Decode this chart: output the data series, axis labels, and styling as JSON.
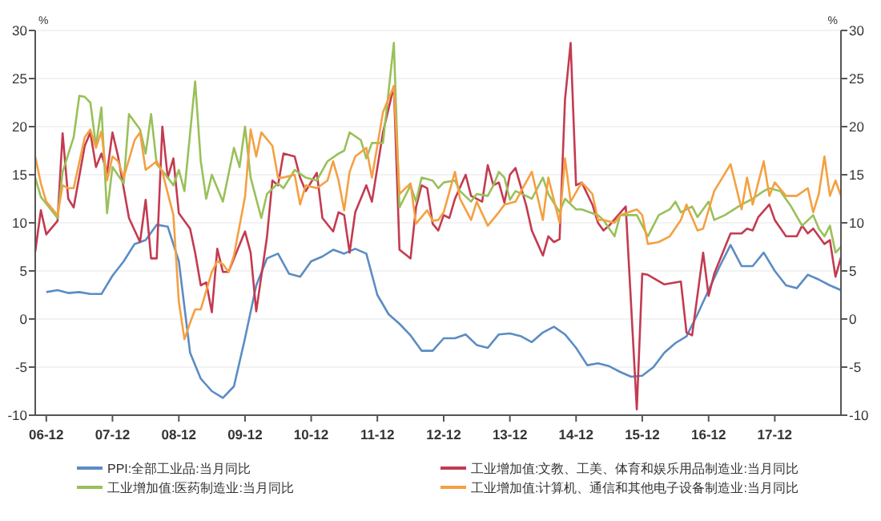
{
  "chart_data": {
    "type": "line",
    "ylabel": "%",
    "y2label": "%",
    "xlim": [
      "2006-10",
      "2018-12"
    ],
    "xticks": [
      {
        "value": "2006-12",
        "label": "06-12"
      },
      {
        "value": "2007-12",
        "label": "07-12"
      },
      {
        "value": "2008-12",
        "label": "08-12"
      },
      {
        "value": "2009-12",
        "label": "09-12"
      },
      {
        "value": "2010-12",
        "label": "10-12"
      },
      {
        "value": "2011-12",
        "label": "11-12"
      },
      {
        "value": "2012-12",
        "label": "12-12"
      },
      {
        "value": "2013-12",
        "label": "13-12"
      },
      {
        "value": "2014-12",
        "label": "14-12"
      },
      {
        "value": "2015-12",
        "label": "15-12"
      },
      {
        "value": "2016-12",
        "label": "16-12"
      },
      {
        "value": "2017-12",
        "label": "17-12"
      }
    ],
    "ylim": [
      -10,
      30
    ],
    "yticks": [
      -10,
      -5,
      0,
      5,
      10,
      15,
      20,
      25,
      30
    ],
    "y2lim": [
      -10,
      30
    ],
    "y2ticks": [
      -10,
      -5,
      0,
      5,
      10,
      15,
      20,
      25,
      30
    ],
    "grid": "y",
    "legend": "bottom",
    "marker": "none",
    "line_style": "solid",
    "series": [
      {
        "name": "PPI:全部工业品:当月同比",
        "color": "#5b8cc4",
        "x": [
          "2006-12",
          "2007-02",
          "2007-04",
          "2007-06",
          "2007-08",
          "2007-10",
          "2007-12",
          "2008-02",
          "2008-04",
          "2008-06",
          "2008-08",
          "2008-10",
          "2008-12",
          "2009-02",
          "2009-04",
          "2009-06",
          "2009-08",
          "2009-10",
          "2009-12",
          "2010-02",
          "2010-04",
          "2010-06",
          "2010-08",
          "2010-10",
          "2010-12",
          "2011-02",
          "2011-04",
          "2011-06",
          "2011-08",
          "2011-10",
          "2011-12",
          "2012-02",
          "2012-04",
          "2012-06",
          "2012-08",
          "2012-10",
          "2012-12",
          "2013-02",
          "2013-04",
          "2013-06",
          "2013-08",
          "2013-10",
          "2013-12",
          "2014-02",
          "2014-04",
          "2014-06",
          "2014-08",
          "2014-10",
          "2014-12",
          "2015-02",
          "2015-04",
          "2015-06",
          "2015-08",
          "2015-10",
          "2015-12",
          "2016-02",
          "2016-04",
          "2016-06",
          "2016-08",
          "2016-10",
          "2016-12",
          "2017-02",
          "2017-04",
          "2017-06",
          "2017-08",
          "2017-10",
          "2017-12",
          "2018-02",
          "2018-04",
          "2018-06",
          "2018-08",
          "2018-10",
          "2018-12"
        ],
        "values": [
          2.8,
          3.0,
          2.7,
          2.8,
          2.6,
          2.6,
          4.5,
          6.0,
          7.8,
          8.2,
          9.8,
          9.6,
          6,
          -3.5,
          -6.2,
          -7.5,
          -8.2,
          -7,
          -2,
          3.5,
          6.3,
          6.8,
          4.7,
          4.4,
          6.0,
          6.5,
          7.2,
          6.8,
          7.3,
          6.8,
          2.5,
          0.5,
          -0.5,
          -1.7,
          -3.3,
          -3.3,
          -2.0,
          -2.0,
          -1.6,
          -2.7,
          -3.0,
          -1.6,
          -1.5,
          -1.8,
          -2.4,
          -1.4,
          -0.8,
          -1.6,
          -3.0,
          -4.8,
          -4.6,
          -4.9,
          -5.5,
          -6,
          -5.9,
          -5.0,
          -3.5,
          -2.5,
          -1.8,
          0.5,
          3.0,
          5.5,
          7.7,
          5.5,
          5.5,
          6.9,
          5.0,
          3.5,
          3.2,
          4.6,
          4.1,
          3.5,
          3.0
        ]
      },
      {
        "name": "工业增加值:文教、工美、体育和娱乐用品制造业:当月同比",
        "color": "#c33b50",
        "x": [
          "2006-10",
          "2006-11",
          "2006-12",
          "2007-02",
          "2007-03",
          "2007-04",
          "2007-05",
          "2007-07",
          "2007-08",
          "2007-09",
          "2007-10",
          "2007-11",
          "2007-12",
          "2008-01",
          "2008-03",
          "2008-05",
          "2008-06",
          "2008-07",
          "2008-08",
          "2008-09",
          "2008-10",
          "2008-11",
          "2008-12",
          "2009-02",
          "2009-03",
          "2009-04",
          "2009-05",
          "2009-06",
          "2009-07",
          "2009-08",
          "2009-09",
          "2009-10",
          "2009-12",
          "2010-01",
          "2010-02",
          "2010-04",
          "2010-05",
          "2010-06",
          "2010-07",
          "2010-09",
          "2010-10",
          "2010-11",
          "2011-01",
          "2011-02",
          "2011-04",
          "2011-05",
          "2011-06",
          "2011-07",
          "2011-08",
          "2011-10",
          "2011-11",
          "2012-01",
          "2012-03",
          "2012-04",
          "2012-06",
          "2012-07",
          "2012-08",
          "2012-09",
          "2012-10",
          "2012-11",
          "2012-12",
          "2013-01",
          "2013-02",
          "2013-04",
          "2013-05",
          "2013-07",
          "2013-08",
          "2013-09",
          "2013-10",
          "2013-11",
          "2013-12",
          "2014-01",
          "2014-03",
          "2014-04",
          "2014-06",
          "2014-07",
          "2014-08",
          "2014-09",
          "2014-10",
          "2014-11",
          "2014-12",
          "2015-01",
          "2015-03",
          "2015-04",
          "2015-05",
          "2015-06",
          "2015-09",
          "2015-11",
          "2015-12",
          "2016-01",
          "2016-04",
          "2016-07",
          "2016-08",
          "2016-09",
          "2016-11",
          "2016-12",
          "2017-01",
          "2017-04",
          "2017-06",
          "2017-07",
          "2017-08",
          "2017-09",
          "2017-11",
          "2017-12",
          "2018-02",
          "2018-04",
          "2018-05",
          "2018-06",
          "2018-07",
          "2018-09",
          "2018-10",
          "2018-11",
          "2018-12"
        ],
        "values": [
          7,
          11.3,
          8.8,
          10.2,
          19.3,
          12.5,
          11.6,
          18,
          19.4,
          15.8,
          17.2,
          15.2,
          19.4,
          16.9,
          10.5,
          8,
          12.4,
          6.3,
          6.3,
          20,
          14.7,
          16.7,
          11,
          9.4,
          6.9,
          3.5,
          3.8,
          0.7,
          7.3,
          4.9,
          4.9,
          6.3,
          9.1,
          6.9,
          0.8,
          8.5,
          14.4,
          13.9,
          17.2,
          16.9,
          14.7,
          13.3,
          15.2,
          10.5,
          9.1,
          11.1,
          10.8,
          6.9,
          11.1,
          13.9,
          12.2,
          19.4,
          24.2,
          7.2,
          6.3,
          11.6,
          13.9,
          13.6,
          9.9,
          9.2,
          10.8,
          10.5,
          12.5,
          15,
          12.8,
          12.2,
          16,
          13.9,
          14.2,
          12.1,
          15,
          15.7,
          11.8,
          9.2,
          6.6,
          8.6,
          8,
          8.3,
          22.8,
          28.7,
          13.9,
          14.2,
          11.9,
          10,
          9.2,
          9.7,
          11.7,
          -9.4,
          4.7,
          4.6,
          3.6,
          3.9,
          -1.4,
          -1.7,
          6.9,
          2.4,
          4.7,
          8.9,
          8.9,
          9.4,
          9.2,
          10.6,
          11.9,
          10.3,
          8.6,
          8.6,
          9.7,
          8.9,
          9.4,
          7.8,
          8.2,
          4.4,
          6.4
        ]
      },
      {
        "name": "工业增加值:医药制造业:当月同比",
        "color": "#99c05a",
        "x": [
          "2006-10",
          "2006-11",
          "2007-02",
          "2007-03",
          "2007-05",
          "2007-06",
          "2007-07",
          "2007-08",
          "2007-09",
          "2007-10",
          "2007-11",
          "2007-12",
          "2008-02",
          "2008-03",
          "2008-05",
          "2008-06",
          "2008-07",
          "2008-08",
          "2008-10",
          "2008-11",
          "2008-12",
          "2009-01",
          "2009-03",
          "2009-04",
          "2009-05",
          "2009-06",
          "2009-08",
          "2009-10",
          "2009-11",
          "2009-12",
          "2010-01",
          "2010-03",
          "2010-04",
          "2010-06",
          "2010-07",
          "2010-09",
          "2010-11",
          "2011-01",
          "2011-03",
          "2011-05",
          "2011-06",
          "2011-07",
          "2011-09",
          "2011-10",
          "2011-11",
          "2012-01",
          "2012-03",
          "2012-04",
          "2012-06",
          "2012-07",
          "2012-08",
          "2012-10",
          "2012-11",
          "2012-12",
          "2013-02",
          "2013-03",
          "2013-05",
          "2013-06",
          "2013-08",
          "2013-09",
          "2013-10",
          "2013-11",
          "2013-12",
          "2014-01",
          "2014-03",
          "2014-04",
          "2014-06",
          "2014-07",
          "2014-09",
          "2014-10",
          "2014-12",
          "2015-01",
          "2015-04",
          "2015-05",
          "2015-07",
          "2015-08",
          "2015-11",
          "2016-01",
          "2016-03",
          "2016-05",
          "2016-06",
          "2016-07",
          "2016-09",
          "2016-10",
          "2016-12",
          "2017-01",
          "2017-03",
          "2017-06",
          "2017-08",
          "2017-10",
          "2017-11",
          "2018-01",
          "2018-03",
          "2018-05",
          "2018-07",
          "2018-08",
          "2018-09",
          "2018-10",
          "2018-11",
          "2018-12"
        ],
        "values": [
          14.7,
          12.7,
          10.5,
          15.3,
          18.9,
          23.2,
          23.1,
          22.5,
          18,
          22,
          11,
          15.8,
          14.1,
          21.3,
          19.7,
          17.2,
          21.3,
          16.1,
          14.7,
          13.9,
          15.5,
          13.3,
          24.7,
          16.4,
          12.5,
          15,
          12.2,
          17.8,
          15.8,
          20,
          14.7,
          10.5,
          13,
          14.1,
          13.6,
          15.5,
          14.7,
          14.4,
          16.4,
          17.2,
          17.5,
          19.4,
          18.6,
          16.7,
          18.3,
          18.3,
          28.7,
          11.6,
          13.9,
          12.2,
          14.7,
          14.4,
          13.6,
          14.2,
          14.4,
          13.3,
          12.2,
          13,
          12.8,
          13.9,
          15.3,
          14.7,
          12.4,
          13.3,
          12.8,
          12.5,
          14.7,
          13,
          11.1,
          12.5,
          11.4,
          11.4,
          10.8,
          10.3,
          8.6,
          10.8,
          10.8,
          8.6,
          10.8,
          11.4,
          12.2,
          11.1,
          11.7,
          10.6,
          12.2,
          10.3,
          10.8,
          11.9,
          12.5,
          13.3,
          13.6,
          13.3,
          11.7,
          9.7,
          10.8,
          9.4,
          8.6,
          9.7,
          6.9,
          7.5
        ]
      },
      {
        "name": "工业增加值:计算机、通信和其他电子设备制造业:当月同比",
        "color": "#f4a042",
        "x": [
          "2006-10",
          "2006-11",
          "2006-12",
          "2007-02",
          "2007-03",
          "2007-04",
          "2007-05",
          "2007-07",
          "2007-08",
          "2007-09",
          "2007-10",
          "2007-11",
          "2007-12",
          "2008-01",
          "2008-02",
          "2008-04",
          "2008-05",
          "2008-06",
          "2008-08",
          "2008-09",
          "2008-11",
          "2008-12",
          "2009-01",
          "2009-02",
          "2009-03",
          "2009-04",
          "2009-06",
          "2009-07",
          "2009-08",
          "2009-09",
          "2009-10",
          "2009-12",
          "2010-01",
          "2010-02",
          "2010-03",
          "2010-05",
          "2010-06",
          "2010-07",
          "2010-09",
          "2010-10",
          "2010-11",
          "2011-01",
          "2011-03",
          "2011-04",
          "2011-05",
          "2011-06",
          "2011-07",
          "2011-08",
          "2011-10",
          "2011-11",
          "2012-01",
          "2012-03",
          "2012-04",
          "2012-06",
          "2012-07",
          "2012-09",
          "2012-10",
          "2012-11",
          "2012-12",
          "2013-02",
          "2013-03",
          "2013-05",
          "2013-06",
          "2013-08",
          "2013-10",
          "2013-11",
          "2014-01",
          "2014-02",
          "2014-04",
          "2014-06",
          "2014-07",
          "2014-09",
          "2014-10",
          "2014-11",
          "2015-01",
          "2015-02",
          "2015-03",
          "2015-04",
          "2015-05",
          "2015-07",
          "2015-08",
          "2015-11",
          "2015-12",
          "2016-01",
          "2016-03",
          "2016-05",
          "2016-07",
          "2016-08",
          "2016-10",
          "2016-11",
          "2017-01",
          "2017-04",
          "2017-06",
          "2017-07",
          "2017-08",
          "2017-10",
          "2017-11",
          "2017-12",
          "2018-02",
          "2018-04",
          "2018-06",
          "2018-07",
          "2018-08",
          "2018-09",
          "2018-10",
          "2018-11",
          "2018-12"
        ],
        "values": [
          16.9,
          14.1,
          12.2,
          10.8,
          13.9,
          13.6,
          13.6,
          18.9,
          19.7,
          17.8,
          19.5,
          14.4,
          16.9,
          16.4,
          14.7,
          18.6,
          19.4,
          15.5,
          16.4,
          15.3,
          10.8,
          1.8,
          -2.1,
          -0.4,
          1,
          1,
          4.9,
          6,
          5.7,
          4.9,
          6.6,
          12.7,
          19.7,
          16.9,
          19.4,
          18,
          14.7,
          14.7,
          15,
          11.9,
          13.9,
          13.6,
          14.4,
          16.4,
          14.4,
          11.3,
          15.3,
          16.9,
          17.8,
          14.7,
          21.5,
          24.2,
          13,
          14.1,
          9.9,
          11.3,
          10.2,
          10.3,
          11.1,
          15.3,
          12.5,
          10.3,
          12.2,
          9.7,
          11.1,
          11.9,
          12.2,
          13.3,
          15.3,
          10.3,
          14.7,
          10,
          16.7,
          12.2,
          14.2,
          13.6,
          13,
          10.3,
          10.3,
          10,
          10.8,
          11.4,
          10.8,
          7.8,
          8,
          8.6,
          10.3,
          11.9,
          9.2,
          9.4,
          13.3,
          16.1,
          11.4,
          14.7,
          11.9,
          16.4,
          12.8,
          14.2,
          12.8,
          12.8,
          13.6,
          11.1,
          13,
          16.9,
          12.8,
          14.4,
          12.8
        ]
      }
    ]
  }
}
